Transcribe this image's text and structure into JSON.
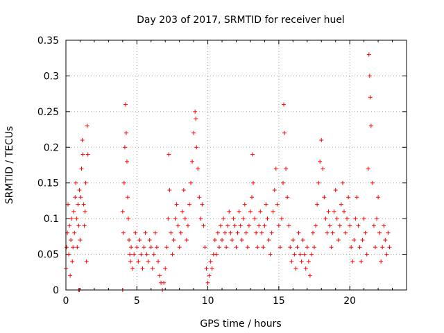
{
  "chart_data": {
    "type": "scatter",
    "title": "Day 203 of 2017, SRMTID for receiver huel",
    "xlabel": "GPS time / hours",
    "ylabel": "SRMTID / TECUs",
    "xlim": [
      0,
      24
    ],
    "ylim": [
      0,
      0.35
    ],
    "grid": true,
    "marker": "+",
    "color": "#ff0000",
    "x_ticks": [
      0,
      5,
      10,
      15,
      20
    ],
    "x_tick_labels": [
      "0",
      "5",
      "10",
      "15",
      "20"
    ],
    "y_ticks": [
      0,
      0.05,
      0.1,
      0.15,
      0.2,
      0.25,
      0.3,
      0.35
    ],
    "y_tick_labels": [
      "0",
      "0.05",
      "0.1",
      "0.15",
      "0.2",
      "0.25",
      "0.3",
      "0.35"
    ],
    "series": [
      {
        "name": "SRMTID",
        "points": [
          [
            0.0,
            0.03
          ],
          [
            0.05,
            0.06
          ],
          [
            0.1,
            0.08
          ],
          [
            0.15,
            0.12
          ],
          [
            0.2,
            0.05
          ],
          [
            0.25,
            0.09
          ],
          [
            0.3,
            0.02
          ],
          [
            0.35,
            0.07
          ],
          [
            0.4,
            0.1
          ],
          [
            0.45,
            0.04
          ],
          [
            0.5,
            0.06
          ],
          [
            0.55,
            0.11
          ],
          [
            0.6,
            0.08
          ],
          [
            0.65,
            0.13
          ],
          [
            0.7,
            0.15
          ],
          [
            0.75,
            0.1
          ],
          [
            0.8,
            0.06
          ],
          [
            0.85,
            0.12
          ],
          [
            0.9,
            0.09
          ],
          [
            0.95,
            0.14
          ],
          [
            1.0,
            0.07
          ],
          [
            1.05,
            0.13
          ],
          [
            1.1,
            0.17
          ],
          [
            1.15,
            0.21
          ],
          [
            1.2,
            0.19
          ],
          [
            1.25,
            0.12
          ],
          [
            1.3,
            0.09
          ],
          [
            1.35,
            0.11
          ],
          [
            1.4,
            0.15
          ],
          [
            1.45,
            0.04
          ],
          [
            1.5,
            0.23
          ],
          [
            1.55,
            0.19
          ],
          [
            0.9,
            0.0
          ],
          [
            0.95,
            0.0
          ],
          [
            4.0,
            0.0
          ],
          [
            4.0,
            0.11
          ],
          [
            4.05,
            0.08
          ],
          [
            4.1,
            0.15
          ],
          [
            4.15,
            0.2
          ],
          [
            4.2,
            0.26
          ],
          [
            4.25,
            0.22
          ],
          [
            4.3,
            0.18
          ],
          [
            4.35,
            0.13
          ],
          [
            4.4,
            0.1
          ],
          [
            4.45,
            0.07
          ],
          [
            4.5,
            0.05
          ],
          [
            4.55,
            0.04
          ],
          [
            4.6,
            0.06
          ],
          [
            4.7,
            0.03
          ],
          [
            4.8,
            0.05
          ],
          [
            4.9,
            0.08
          ],
          [
            5.0,
            0.06
          ],
          [
            5.1,
            0.04
          ],
          [
            5.2,
            0.07
          ],
          [
            5.3,
            0.05
          ],
          [
            5.4,
            0.03
          ],
          [
            5.5,
            0.06
          ],
          [
            5.6,
            0.08
          ],
          [
            5.7,
            0.05
          ],
          [
            5.8,
            0.04
          ],
          [
            5.9,
            0.07
          ],
          [
            6.0,
            0.06
          ],
          [
            6.1,
            0.03
          ],
          [
            6.2,
            0.05
          ],
          [
            6.3,
            0.08
          ],
          [
            6.4,
            0.06
          ],
          [
            6.5,
            0.04
          ],
          [
            6.6,
            0.02
          ],
          [
            6.7,
            0.01
          ],
          [
            6.8,
            0.0
          ],
          [
            6.9,
            0.01
          ],
          [
            7.0,
            0.03
          ],
          [
            7.1,
            0.06
          ],
          [
            7.2,
            0.1
          ],
          [
            7.25,
            0.19
          ],
          [
            7.3,
            0.14
          ],
          [
            7.4,
            0.08
          ],
          [
            7.5,
            0.05
          ],
          [
            7.6,
            0.07
          ],
          [
            7.7,
            0.1
          ],
          [
            7.8,
            0.12
          ],
          [
            7.9,
            0.09
          ],
          [
            8.0,
            0.06
          ],
          [
            8.1,
            0.08
          ],
          [
            8.2,
            0.11
          ],
          [
            8.3,
            0.14
          ],
          [
            8.4,
            0.1
          ],
          [
            8.5,
            0.07
          ],
          [
            8.6,
            0.09
          ],
          [
            8.7,
            0.12
          ],
          [
            8.8,
            0.15
          ],
          [
            8.9,
            0.18
          ],
          [
            9.0,
            0.22
          ],
          [
            9.1,
            0.25
          ],
          [
            9.15,
            0.24
          ],
          [
            9.2,
            0.2
          ],
          [
            9.3,
            0.17
          ],
          [
            9.4,
            0.13
          ],
          [
            9.5,
            0.1
          ],
          [
            9.6,
            0.12
          ],
          [
            9.7,
            0.09
          ],
          [
            9.8,
            0.06
          ],
          [
            9.9,
            0.03
          ],
          [
            10.0,
            0.01
          ],
          [
            10.1,
            0.02
          ],
          [
            10.2,
            0.04
          ],
          [
            10.3,
            0.03
          ],
          [
            10.4,
            0.05
          ],
          [
            10.5,
            0.07
          ],
          [
            10.6,
            0.05
          ],
          [
            10.7,
            0.08
          ],
          [
            10.8,
            0.06
          ],
          [
            10.9,
            0.09
          ],
          [
            11.0,
            0.07
          ],
          [
            11.1,
            0.1
          ],
          [
            11.2,
            0.08
          ],
          [
            11.3,
            0.06
          ],
          [
            11.4,
            0.09
          ],
          [
            11.5,
            0.11
          ],
          [
            11.6,
            0.08
          ],
          [
            11.7,
            0.07
          ],
          [
            11.8,
            0.1
          ],
          [
            11.9,
            0.09
          ],
          [
            12.0,
            0.06
          ],
          [
            12.1,
            0.08
          ],
          [
            12.2,
            0.11
          ],
          [
            12.3,
            0.09
          ],
          [
            12.4,
            0.07
          ],
          [
            12.5,
            0.1
          ],
          [
            12.6,
            0.12
          ],
          [
            12.7,
            0.08
          ],
          [
            12.8,
            0.06
          ],
          [
            12.9,
            0.09
          ],
          [
            13.0,
            0.11
          ],
          [
            13.1,
            0.13
          ],
          [
            13.15,
            0.19
          ],
          [
            13.2,
            0.15
          ],
          [
            13.3,
            0.1
          ],
          [
            13.4,
            0.08
          ],
          [
            13.5,
            0.06
          ],
          [
            13.6,
            0.09
          ],
          [
            13.7,
            0.11
          ],
          [
            13.8,
            0.08
          ],
          [
            13.9,
            0.06
          ],
          [
            14.0,
            0.09
          ],
          [
            14.1,
            0.12
          ],
          [
            14.2,
            0.1
          ],
          [
            14.3,
            0.07
          ],
          [
            14.4,
            0.05
          ],
          [
            14.5,
            0.08
          ],
          [
            14.6,
            0.11
          ],
          [
            14.7,
            0.14
          ],
          [
            14.8,
            0.17
          ],
          [
            14.9,
            0.12
          ],
          [
            15.0,
            0.09
          ],
          [
            15.1,
            0.06
          ],
          [
            15.2,
            0.1
          ],
          [
            15.3,
            0.15
          ],
          [
            15.35,
            0.26
          ],
          [
            15.4,
            0.22
          ],
          [
            15.5,
            0.17
          ],
          [
            15.6,
            0.13
          ],
          [
            15.7,
            0.09
          ],
          [
            15.8,
            0.06
          ],
          [
            15.9,
            0.04
          ],
          [
            16.0,
            0.07
          ],
          [
            16.1,
            0.05
          ],
          [
            16.2,
            0.03
          ],
          [
            16.3,
            0.06
          ],
          [
            16.4,
            0.08
          ],
          [
            16.5,
            0.05
          ],
          [
            16.6,
            0.04
          ],
          [
            16.7,
            0.07
          ],
          [
            16.8,
            0.05
          ],
          [
            16.9,
            0.03
          ],
          [
            17.0,
            0.06
          ],
          [
            17.1,
            0.04
          ],
          [
            17.2,
            0.02
          ],
          [
            17.3,
            0.05
          ],
          [
            17.4,
            0.08
          ],
          [
            17.5,
            0.06
          ],
          [
            17.6,
            0.09
          ],
          [
            17.7,
            0.12
          ],
          [
            17.8,
            0.15
          ],
          [
            17.9,
            0.18
          ],
          [
            18.0,
            0.21
          ],
          [
            18.1,
            0.17
          ],
          [
            18.2,
            0.13
          ],
          [
            18.3,
            0.1
          ],
          [
            18.4,
            0.08
          ],
          [
            18.5,
            0.11
          ],
          [
            18.6,
            0.09
          ],
          [
            18.7,
            0.06
          ],
          [
            18.8,
            0.08
          ],
          [
            18.9,
            0.11
          ],
          [
            19.0,
            0.14
          ],
          [
            19.1,
            0.1
          ],
          [
            19.2,
            0.07
          ],
          [
            19.3,
            0.09
          ],
          [
            19.4,
            0.12
          ],
          [
            19.5,
            0.15
          ],
          [
            19.6,
            0.11
          ],
          [
            19.7,
            0.08
          ],
          [
            19.8,
            0.1
          ],
          [
            19.9,
            0.13
          ],
          [
            20.0,
            0.09
          ],
          [
            20.1,
            0.06
          ],
          [
            20.2,
            0.04
          ],
          [
            20.3,
            0.07
          ],
          [
            20.4,
            0.1
          ],
          [
            20.5,
            0.13
          ],
          [
            20.6,
            0.09
          ],
          [
            20.7,
            0.06
          ],
          [
            20.8,
            0.04
          ],
          [
            20.9,
            0.07
          ],
          [
            21.0,
            0.1
          ],
          [
            21.1,
            0.08
          ],
          [
            21.2,
            0.05
          ],
          [
            21.3,
            0.17
          ],
          [
            21.35,
            0.33
          ],
          [
            21.4,
            0.3
          ],
          [
            21.45,
            0.27
          ],
          [
            21.5,
            0.23
          ],
          [
            21.6,
            0.15
          ],
          [
            21.7,
            0.09
          ],
          [
            21.8,
            0.06
          ],
          [
            21.9,
            0.1
          ],
          [
            22.0,
            0.13
          ],
          [
            22.1,
            0.08
          ],
          [
            22.2,
            0.04
          ],
          [
            22.3,
            0.06
          ],
          [
            22.4,
            0.09
          ],
          [
            22.5,
            0.07
          ],
          [
            22.6,
            0.05
          ],
          [
            22.7,
            0.08
          ],
          [
            22.8,
            0.06
          ]
        ]
      }
    ]
  }
}
